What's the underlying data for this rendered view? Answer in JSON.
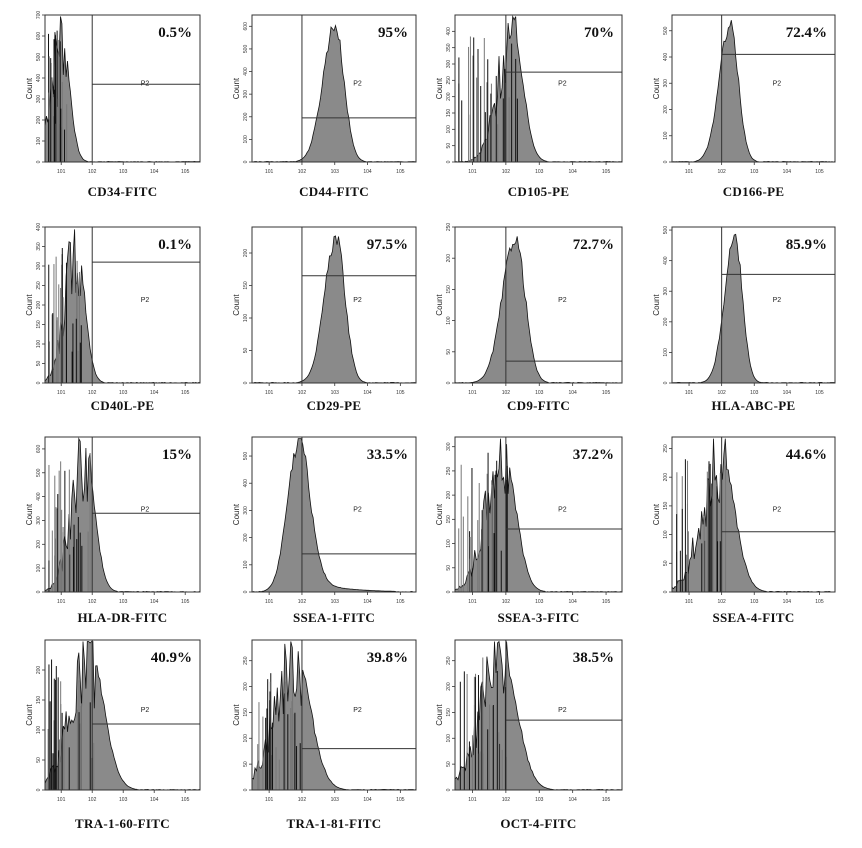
{
  "chart_data": {
    "type": "histogram-grid",
    "title": "",
    "description": "Flow cytometry single-parameter histograms (Count vs log fluorescence intensity) with gate P2 and percentage of positive cells",
    "x_scale": "log",
    "x_range": [
      3,
      300000
    ],
    "x_ticks": [
      "10^1",
      "10^2",
      "10^3",
      "10^4",
      "10^5"
    ],
    "ylabel": "Count",
    "gate_name": "P2",
    "grid": false,
    "panels": [
      {
        "marker": "CD34-FITC",
        "percent": "0.5%",
        "ymax": 700,
        "yticks": [
          "0",
          "100",
          "200",
          "300",
          "400",
          "500",
          "600",
          "700"
        ],
        "gate_start": 100,
        "gate_level": 370,
        "peak": 10,
        "width": 0.3,
        "noisy": true
      },
      {
        "marker": "CD44-FITC",
        "percent": "95%",
        "ymax": 650,
        "yticks": [
          "0",
          "100",
          "200",
          "300",
          "400",
          "500",
          "600"
        ],
        "gate_start": 100,
        "gate_level": 195,
        "peak": 1000,
        "width": 0.33,
        "noisy": false
      },
      {
        "marker": "CD105-PE",
        "percent": "70%",
        "ymax": 450,
        "yticks": [
          "0",
          "50",
          "100",
          "150",
          "200",
          "250",
          "300",
          "350",
          "400"
        ],
        "gate_start": 100,
        "gate_level": 275,
        "peak": 150,
        "width": 0.38,
        "noisy": true
      },
      {
        "marker": "CD166-PE",
        "percent": "72.4%",
        "ymax": 560,
        "yticks": [
          "0",
          "100",
          "200",
          "300",
          "400",
          "500"
        ],
        "gate_start": 100,
        "gate_level": 410,
        "peak": 180,
        "width": 0.3,
        "noisy": false
      },
      {
        "marker": "CD40L-PE",
        "percent": "0.1%",
        "ymax": 400,
        "yticks": [
          "0",
          "50",
          "100",
          "150",
          "200",
          "250",
          "300",
          "350",
          "400"
        ],
        "gate_start": 100,
        "gate_level": 310,
        "peak": 30,
        "width": 0.32,
        "noisy": true
      },
      {
        "marker": "CD29-PE",
        "percent": "97.5%",
        "ymax": 240,
        "yticks": [
          "0",
          "50",
          "100",
          "150",
          "200"
        ],
        "gate_start": 100,
        "gate_level": 165,
        "peak": 1100,
        "width": 0.32,
        "noisy": false
      },
      {
        "marker": "CD9-FITC",
        "percent": "72.7%",
        "ymax": 250,
        "yticks": [
          "0",
          "50",
          "100",
          "150",
          "200",
          "250"
        ],
        "gate_start": 100,
        "gate_level": 35,
        "peak": 190,
        "width": 0.35,
        "noisy": false
      },
      {
        "marker": "HLA-ABC-PE",
        "percent": "85.9%",
        "ymax": 510,
        "yticks": [
          "0",
          "100",
          "200",
          "300",
          "400",
          "500"
        ],
        "gate_start": 100,
        "gate_level": 355,
        "peak": 250,
        "width": 0.28,
        "noisy": false
      },
      {
        "marker": "HLA-DR-FITC",
        "percent": "15%",
        "ymax": 650,
        "yticks": [
          "0",
          "100",
          "200",
          "300",
          "400",
          "500",
          "600"
        ],
        "gate_start": 100,
        "gate_level": 330,
        "peak": 55,
        "width": 0.38,
        "noisy": true
      },
      {
        "marker": "SSEA-1-FITC",
        "percent": "33.5%",
        "ymax": 570,
        "yticks": [
          "0",
          "100",
          "200",
          "300",
          "400",
          "500"
        ],
        "gate_start": 100,
        "gate_level": 140,
        "peak": 75,
        "width": 0.3,
        "noisy": false,
        "tail": true
      },
      {
        "marker": "SSEA-3-FITC",
        "percent": "37.2%",
        "ymax": 320,
        "yticks": [
          "0",
          "50",
          "100",
          "150",
          "200",
          "250",
          "300"
        ],
        "gate_start": 100,
        "gate_level": 130,
        "peak": 80,
        "width": 0.45,
        "noisy": true
      },
      {
        "marker": "SSEA-4-FITC",
        "percent": "44.6%",
        "ymax": 270,
        "yticks": [
          "0",
          "50",
          "100",
          "150",
          "200",
          "250"
        ],
        "gate_start": 100,
        "gate_level": 105,
        "peak": 90,
        "width": 0.5,
        "noisy": true
      },
      {
        "marker": "TRA-1-60-FITC",
        "percent": "40.9%",
        "ymax": 250,
        "yticks": [
          "0",
          "50",
          "100",
          "150",
          "200"
        ],
        "gate_start": 100,
        "gate_level": 110,
        "peak": 80,
        "width": 0.55,
        "noisy": true
      },
      {
        "marker": "TRA-1-81-FITC",
        "percent": "39.8%",
        "ymax": 290,
        "yticks": [
          "0",
          "50",
          "100",
          "150",
          "200",
          "250"
        ],
        "gate_start": 100,
        "gate_level": 80,
        "peak": 60,
        "width": 0.55,
        "noisy": true
      },
      {
        "marker": "OCT-4-FITC",
        "percent": "38.5%",
        "ymax": 290,
        "yticks": [
          "0",
          "50",
          "100",
          "150",
          "200",
          "250"
        ],
        "gate_start": 100,
        "gate_level": 135,
        "peak": 70,
        "width": 0.55,
        "noisy": true
      }
    ]
  }
}
